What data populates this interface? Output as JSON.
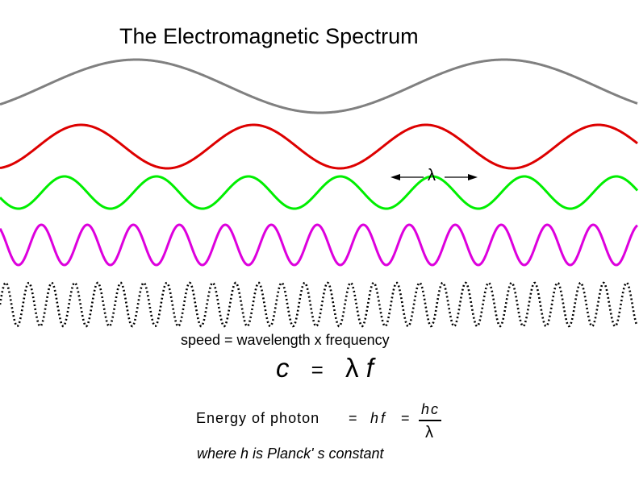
{
  "title": "The Electromagnetic Spectrum",
  "lambda_label": "λ",
  "speed_text": "speed = wavelength x frequency",
  "equation": {
    "lhs": "c",
    "eq": "=",
    "lambda": "λ",
    "f": "f"
  },
  "energy": {
    "label": "Energy of photon",
    "eq1": "=",
    "hf": "hf",
    "eq2": "=",
    "numerator": "hc",
    "denominator": "λ"
  },
  "planck_note": "where h is Planck'   s constant",
  "waves": [
    {
      "color": "#808080",
      "style": "solid",
      "wavelength_rel": 16
    },
    {
      "color": "#dd0000",
      "style": "solid",
      "wavelength_rel": 7.5
    },
    {
      "color": "#00ee00",
      "style": "solid",
      "wavelength_rel": 4
    },
    {
      "color": "#dd00dd",
      "style": "solid",
      "wavelength_rel": 2
    },
    {
      "color": "#000000",
      "style": "dotted",
      "wavelength_rel": 1
    }
  ]
}
